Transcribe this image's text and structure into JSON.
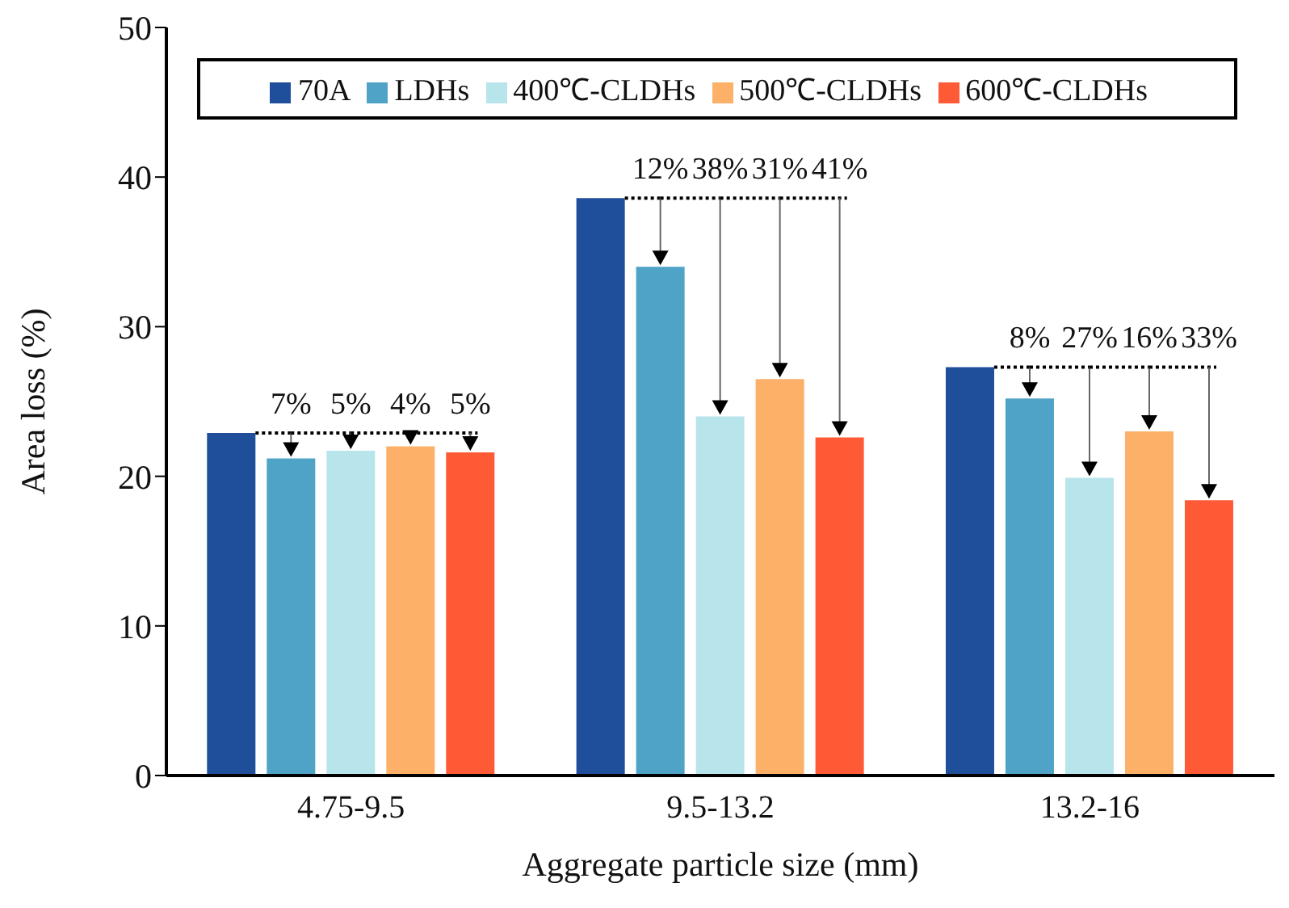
{
  "chart_data": {
    "type": "bar",
    "xlabel": "Aggregate particle size (mm)",
    "ylabel": "Area loss (%)",
    "categories": [
      "4.75-9.5",
      "9.5-13.2",
      "13.2-16"
    ],
    "series": [
      {
        "name": "70A",
        "color": "#1f4e9a",
        "values": [
          22.9,
          38.6,
          27.3
        ]
      },
      {
        "name": "LDHs",
        "color": "#4fa3c7",
        "values": [
          21.2,
          34.0,
          25.2
        ]
      },
      {
        "name": "400℃-CLDHs",
        "color": "#b8e4ec",
        "values": [
          21.7,
          24.0,
          19.9
        ]
      },
      {
        "name": "500℃-CLDHs",
        "color": "#fdb168",
        "values": [
          22.0,
          26.5,
          23.0
        ]
      },
      {
        "name": "600℃-CLDHs",
        "color": "#ff5a36",
        "values": [
          21.6,
          22.6,
          18.4
        ]
      }
    ],
    "annotations": [
      "7%",
      "5%",
      "4%",
      "5%",
      "12%",
      "38%",
      "31%",
      "41%",
      "8%",
      "27%",
      "16%",
      "33%"
    ],
    "ylim": [
      0,
      50
    ],
    "yticks": [
      0,
      10,
      20,
      30,
      40,
      50
    ],
    "grid": false,
    "legend": "top"
  }
}
